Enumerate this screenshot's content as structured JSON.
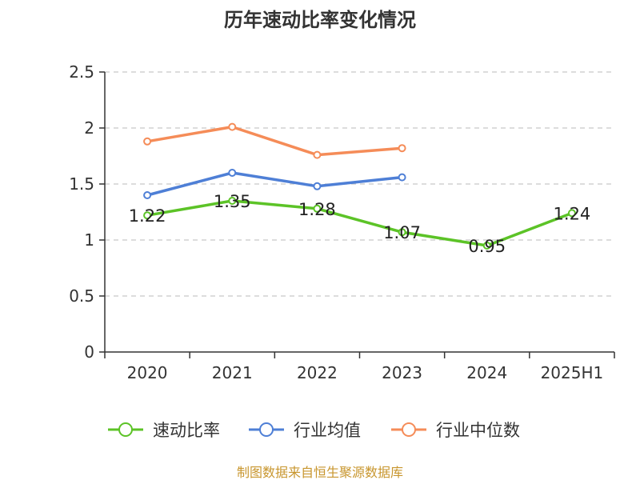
{
  "colors": {
    "speed_ratio": "#5cc327",
    "industry_avg": "#4e7fd6",
    "industry_median": "#f58c58"
  },
  "chart_data": {
    "type": "line",
    "title": "历年速动比率变化情况",
    "source": "制图数据来自恒生聚源数据库",
    "categories": [
      "2020",
      "2021",
      "2022",
      "2023",
      "2024",
      "2025H1"
    ],
    "y_ticks": [
      "0",
      "0.5",
      "1",
      "1.5",
      "2",
      "2.5"
    ],
    "ylim": [
      0,
      2.5
    ],
    "grid": true,
    "legend_position": "bottom",
    "series": [
      {
        "key": "speed_ratio",
        "name": "速动比率",
        "values": [
          1.22,
          1.35,
          1.28,
          1.07,
          0.95,
          1.24
        ],
        "labels": [
          "1.22",
          "1.35",
          "1.28",
          "1.07",
          "0.95",
          "1.24"
        ]
      },
      {
        "key": "industry_avg",
        "name": "行业均值",
        "values": [
          1.4,
          1.6,
          1.48,
          1.56,
          null,
          null
        ]
      },
      {
        "key": "industry_median",
        "name": "行业中位数",
        "values": [
          1.88,
          2.01,
          1.76,
          1.82,
          null,
          null
        ]
      }
    ]
  }
}
